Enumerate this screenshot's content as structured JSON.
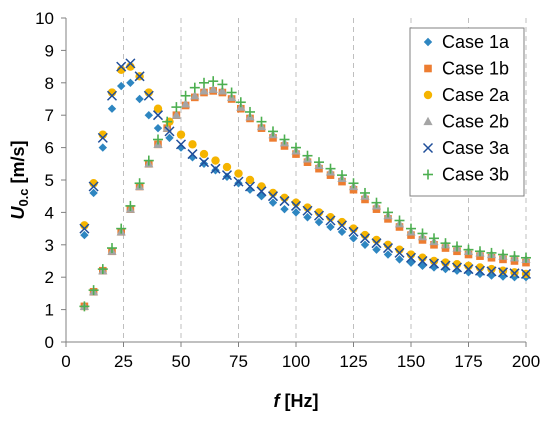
{
  "colors": {
    "case_1a": "#2E86C1",
    "case_1b": "#ED7D31",
    "case_2a": "#F5B400",
    "case_2b": "#A5A5A5",
    "case_3a": "#1F4E9A",
    "case_3b": "#4CAF50",
    "grid": "#BFBFBF",
    "axis": "#808080"
  },
  "chart_data": {
    "type": "scatter",
    "title": "",
    "xlabel": {
      "italic": "f",
      "rest": " [Hz]"
    },
    "ylabel": {
      "main": "U",
      "sub": "0.c",
      "rest": " [m/s]"
    },
    "xlim": [
      0,
      200
    ],
    "ylim": [
      0,
      10
    ],
    "x_ticks": [
      0,
      25,
      50,
      75,
      100,
      125,
      150,
      175,
      200
    ],
    "y_ticks": [
      0,
      1,
      2,
      3,
      4,
      5,
      6,
      7,
      8,
      9,
      10
    ],
    "x_grid": true,
    "y_grid": false,
    "legend_position": "top-right",
    "series": [
      {
        "name": "Case 1a",
        "marker": "diamond",
        "x": [
          8,
          12,
          16,
          20,
          24,
          28,
          32,
          36,
          40,
          45,
          50,
          55,
          60,
          65,
          70,
          75,
          80,
          85,
          90,
          95,
          100,
          105,
          110,
          115,
          120,
          125,
          130,
          135,
          140,
          145,
          150,
          155,
          160,
          165,
          170,
          175,
          180,
          185,
          190,
          195,
          200
        ],
        "y": [
          3.3,
          4.6,
          6.0,
          7.2,
          7.9,
          8.0,
          7.5,
          7.0,
          6.6,
          6.3,
          6.0,
          5.7,
          5.5,
          5.3,
          5.1,
          4.9,
          4.7,
          4.5,
          4.3,
          4.1,
          4.0,
          3.85,
          3.7,
          3.55,
          3.4,
          3.2,
          3.0,
          2.85,
          2.7,
          2.55,
          2.45,
          2.35,
          2.3,
          2.25,
          2.2,
          2.15,
          2.1,
          2.05,
          2.02,
          2.0,
          2.0
        ]
      },
      {
        "name": "Case 1b",
        "marker": "square",
        "x": [
          8,
          12,
          16,
          20,
          24,
          28,
          32,
          36,
          40,
          44,
          48,
          52,
          56,
          60,
          64,
          68,
          72,
          76,
          80,
          85,
          90,
          95,
          100,
          105,
          110,
          115,
          120,
          125,
          130,
          135,
          140,
          145,
          150,
          155,
          160,
          165,
          170,
          175,
          180,
          185,
          190,
          195,
          200
        ],
        "y": [
          1.1,
          1.55,
          2.2,
          2.8,
          3.4,
          4.1,
          4.8,
          5.5,
          6.1,
          6.6,
          7.0,
          7.3,
          7.55,
          7.7,
          7.75,
          7.7,
          7.5,
          7.2,
          6.9,
          6.6,
          6.3,
          6.05,
          5.8,
          5.55,
          5.35,
          5.15,
          4.95,
          4.7,
          4.4,
          4.1,
          3.8,
          3.55,
          3.3,
          3.15,
          3.0,
          2.9,
          2.8,
          2.7,
          2.65,
          2.6,
          2.55,
          2.5,
          2.45
        ]
      },
      {
        "name": "Case 2a",
        "marker": "circle",
        "x": [
          8,
          12,
          16,
          20,
          24,
          28,
          32,
          36,
          40,
          45,
          50,
          55,
          60,
          65,
          70,
          75,
          80,
          85,
          90,
          95,
          100,
          105,
          110,
          115,
          120,
          125,
          130,
          135,
          140,
          145,
          150,
          155,
          160,
          165,
          170,
          175,
          180,
          185,
          190,
          195,
          200
        ],
        "y": [
          3.6,
          4.9,
          6.4,
          7.7,
          8.4,
          8.5,
          8.2,
          7.7,
          7.2,
          6.8,
          6.4,
          6.1,
          5.8,
          5.6,
          5.4,
          5.2,
          5.0,
          4.8,
          4.6,
          4.45,
          4.3,
          4.15,
          4.0,
          3.85,
          3.7,
          3.5,
          3.3,
          3.15,
          3.0,
          2.85,
          2.7,
          2.6,
          2.5,
          2.45,
          2.4,
          2.35,
          2.3,
          2.25,
          2.2,
          2.15,
          2.1
        ]
      },
      {
        "name": "Case 2b",
        "marker": "triangle",
        "x": [
          8,
          12,
          16,
          20,
          24,
          28,
          32,
          36,
          40,
          44,
          48,
          52,
          56,
          60,
          64,
          68,
          72,
          76,
          80,
          85,
          90,
          95,
          100,
          105,
          110,
          115,
          120,
          125,
          130,
          135,
          140,
          145,
          150,
          155,
          160,
          165,
          170,
          175,
          180,
          185,
          190,
          195,
          200
        ],
        "y": [
          1.1,
          1.55,
          2.2,
          2.8,
          3.4,
          4.1,
          4.8,
          5.5,
          6.1,
          6.6,
          7.0,
          7.35,
          7.6,
          7.75,
          7.8,
          7.75,
          7.55,
          7.25,
          6.95,
          6.65,
          6.4,
          6.15,
          5.9,
          5.65,
          5.45,
          5.25,
          5.05,
          4.8,
          4.5,
          4.2,
          3.9,
          3.65,
          3.4,
          3.25,
          3.1,
          3.0,
          2.9,
          2.8,
          2.75,
          2.7,
          2.65,
          2.6,
          2.55
        ]
      },
      {
        "name": "Case 3a",
        "marker": "x",
        "x": [
          8,
          12,
          16,
          20,
          24,
          28,
          32,
          36,
          40,
          45,
          50,
          55,
          60,
          65,
          70,
          75,
          80,
          85,
          90,
          95,
          100,
          105,
          110,
          115,
          120,
          125,
          130,
          135,
          140,
          145,
          150,
          155,
          160,
          165,
          170,
          175,
          180,
          185,
          190,
          195,
          200
        ],
        "y": [
          3.5,
          4.8,
          6.3,
          7.6,
          8.5,
          8.6,
          8.2,
          7.6,
          7.0,
          6.5,
          6.1,
          5.8,
          5.55,
          5.35,
          5.15,
          4.95,
          4.8,
          4.65,
          4.5,
          4.35,
          4.2,
          4.05,
          3.9,
          3.75,
          3.6,
          3.4,
          3.2,
          3.05,
          2.9,
          2.75,
          2.6,
          2.5,
          2.42,
          2.36,
          2.3,
          2.25,
          2.2,
          2.18,
          2.15,
          2.12,
          2.1
        ]
      },
      {
        "name": "Case 3b",
        "marker": "plus",
        "x": [
          8,
          12,
          16,
          20,
          24,
          28,
          32,
          36,
          40,
          44,
          48,
          52,
          56,
          60,
          64,
          68,
          72,
          76,
          80,
          85,
          90,
          95,
          100,
          105,
          110,
          115,
          120,
          125,
          130,
          135,
          140,
          145,
          150,
          155,
          160,
          165,
          170,
          175,
          180,
          185,
          190,
          195,
          200
        ],
        "y": [
          1.1,
          1.6,
          2.25,
          2.9,
          3.5,
          4.2,
          4.9,
          5.6,
          6.25,
          6.8,
          7.25,
          7.6,
          7.85,
          8.0,
          8.05,
          7.95,
          7.7,
          7.4,
          7.1,
          6.8,
          6.5,
          6.25,
          6.0,
          5.75,
          5.55,
          5.35,
          5.15,
          4.9,
          4.6,
          4.3,
          4.0,
          3.75,
          3.5,
          3.35,
          3.2,
          3.05,
          2.95,
          2.85,
          2.8,
          2.75,
          2.7,
          2.65,
          2.6
        ]
      }
    ]
  }
}
